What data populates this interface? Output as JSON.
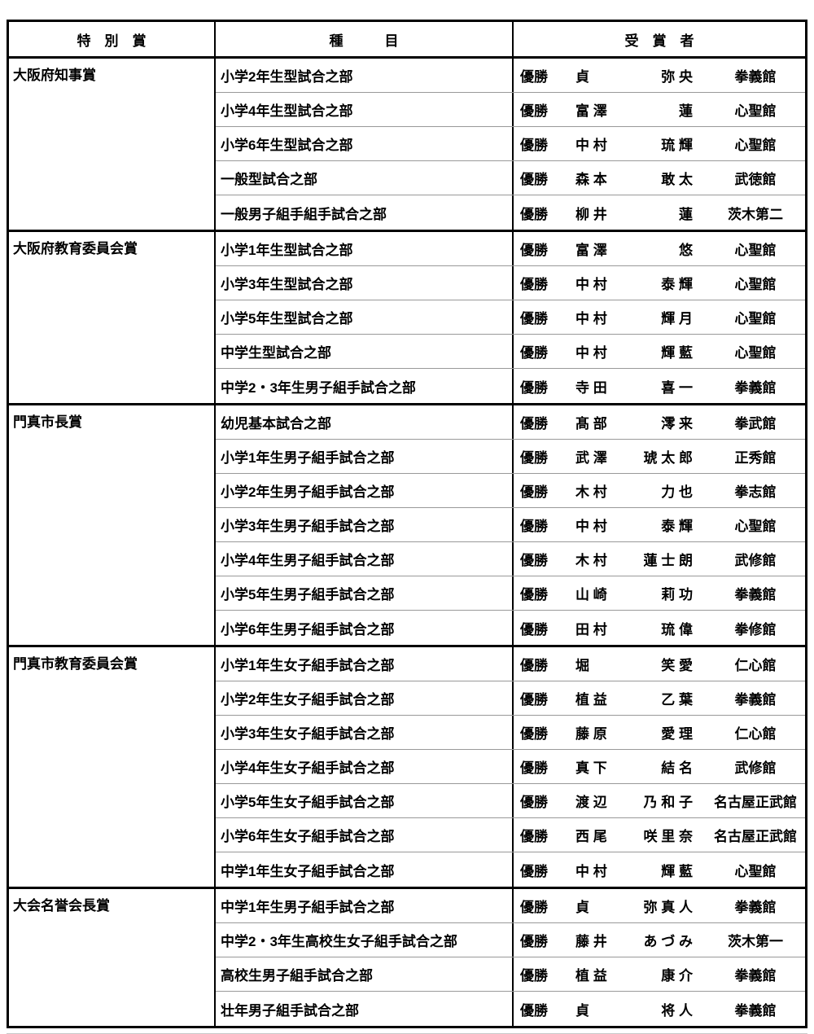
{
  "table": {
    "headers": {
      "award": "特　別　賞",
      "event": "種　　　目",
      "recipient": "受　賞　者"
    },
    "groups": [
      {
        "award": "大阪府知事賞",
        "rows": [
          {
            "event": "小学2年生型試合之部",
            "rank": "優勝",
            "surname": "貞",
            "given": "弥 央",
            "dojo": "拳義館"
          },
          {
            "event": "小学4年生型試合之部",
            "rank": "優勝",
            "surname": "富 澤",
            "given": "蓮",
            "dojo": "心聖館"
          },
          {
            "event": "小学6年生型試合之部",
            "rank": "優勝",
            "surname": "中 村",
            "given": "琉 輝",
            "dojo": "心聖館"
          },
          {
            "event": "一般型試合之部",
            "rank": "優勝",
            "surname": "森 本",
            "given": "敢 太",
            "dojo": "武徳館"
          },
          {
            "event": "一般男子組手組手試合之部",
            "rank": "優勝",
            "surname": "柳 井",
            "given": "蓮",
            "dojo": "茨木第二"
          }
        ]
      },
      {
        "award": "大阪府教育委員会賞",
        "rows": [
          {
            "event": "小学1年生型試合之部",
            "rank": "優勝",
            "surname": "富 澤",
            "given": "悠",
            "dojo": "心聖館"
          },
          {
            "event": "小学3年生型試合之部",
            "rank": "優勝",
            "surname": "中 村",
            "given": "泰 輝",
            "dojo": "心聖館"
          },
          {
            "event": "小学5年生型試合之部",
            "rank": "優勝",
            "surname": "中 村",
            "given": "輝 月",
            "dojo": "心聖館"
          },
          {
            "event": "中学生型試合之部",
            "rank": "優勝",
            "surname": "中 村",
            "given": "輝 藍",
            "dojo": "心聖館"
          },
          {
            "event": "中学2・3年生男子組手試合之部",
            "rank": "優勝",
            "surname": "寺 田",
            "given": "喜 一",
            "dojo": "拳義館"
          }
        ]
      },
      {
        "award": "門真市長賞",
        "rows": [
          {
            "event": "幼児基本試合之部",
            "rank": "優勝",
            "surname": "髙 部",
            "given": "澪 来",
            "dojo": "拳武館"
          },
          {
            "event": "小学1年生男子組手試合之部",
            "rank": "優勝",
            "surname": "武 澤",
            "given": "琥 太 郎",
            "dojo": "正秀館"
          },
          {
            "event": "小学2年生男子組手試合之部",
            "rank": "優勝",
            "surname": "木 村",
            "given": "力 也",
            "dojo": "拳志館"
          },
          {
            "event": "小学3年生男子組手試合之部",
            "rank": "優勝",
            "surname": "中 村",
            "given": "泰 輝",
            "dojo": "心聖館"
          },
          {
            "event": "小学4年生男子組手試合之部",
            "rank": "優勝",
            "surname": "木 村",
            "given": "蓮 士 朗",
            "dojo": "武修館"
          },
          {
            "event": "小学5年生男子組手試合之部",
            "rank": "優勝",
            "surname": "山 崎",
            "given": "莉 功",
            "dojo": "拳義館"
          },
          {
            "event": "小学6年生男子組手試合之部",
            "rank": "優勝",
            "surname": "田 村",
            "given": "琉 偉",
            "dojo": "拳修館"
          }
        ]
      },
      {
        "award": "門真市教育委員会賞",
        "rows": [
          {
            "event": "小学1年生女子組手試合之部",
            "rank": "優勝",
            "surname": "堀",
            "given": "笑 愛",
            "dojo": "仁心館"
          },
          {
            "event": "小学2年生女子組手試合之部",
            "rank": "優勝",
            "surname": "植 益",
            "given": "乙 葉",
            "dojo": "拳義館"
          },
          {
            "event": "小学3年生女子組手試合之部",
            "rank": "優勝",
            "surname": "藤 原",
            "given": "愛 理",
            "dojo": "仁心館"
          },
          {
            "event": "小学4年生女子組手試合之部",
            "rank": "優勝",
            "surname": "真 下",
            "given": "結 名",
            "dojo": "武修館"
          },
          {
            "event": "小学5年生女子組手試合之部",
            "rank": "優勝",
            "surname": "渡 辺",
            "given": "乃 和 子",
            "dojo": "名古屋正武館"
          },
          {
            "event": "小学6年生女子組手試合之部",
            "rank": "優勝",
            "surname": "西 尾",
            "given": "咲 里 奈",
            "dojo": "名古屋正武館"
          },
          {
            "event": "中学1年生女子組手試合之部",
            "rank": "優勝",
            "surname": "中 村",
            "given": "輝 藍",
            "dojo": "心聖館"
          }
        ]
      },
      {
        "award": "大会名誉会長賞",
        "rows": [
          {
            "event": "中学1年生男子組手試合之部",
            "rank": "優勝",
            "surname": "貞",
            "given": "弥 真 人",
            "dojo": "拳義館"
          },
          {
            "event": "中学2・3年生高校生女子組手試合之部",
            "rank": "優勝",
            "surname": "藤 井",
            "given": "あ づ み",
            "dojo": "茨木第一"
          },
          {
            "event": "高校生男子組手試合之部",
            "rank": "優勝",
            "surname": "植 益",
            "given": "康 介",
            "dojo": "拳義館"
          },
          {
            "event": "壮年男子組手試合之部",
            "rank": "優勝",
            "surname": "貞",
            "given": "将 人",
            "dojo": "拳義館"
          }
        ]
      }
    ]
  }
}
